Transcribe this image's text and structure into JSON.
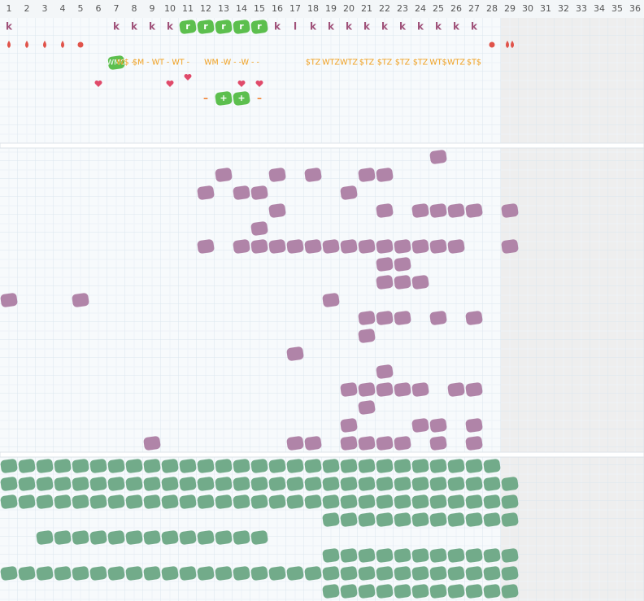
{
  "header": {
    "columns": [
      1,
      2,
      3,
      4,
      5,
      6,
      7,
      8,
      9,
      10,
      11,
      12,
      13,
      14,
      15,
      16,
      17,
      18,
      19,
      20,
      21,
      22,
      23,
      24,
      25,
      26,
      27,
      28,
      29,
      30,
      31,
      32,
      33,
      34,
      35,
      36
    ]
  },
  "top": {
    "row1": [
      "k",
      "k",
      "k",
      "k",
      "k",
      "r",
      "r",
      "r",
      "r",
      "r",
      "k",
      "l",
      "k",
      "k",
      "k",
      "k",
      "k",
      "k",
      "k",
      "k",
      "k",
      "k"
    ],
    "row3": {
      "blob": "WMO",
      "labels": [
        "W$ -",
        "$M - WT - WT -",
        "WM -W - -W - -",
        "$TZ",
        "WTZ",
        "WTZ",
        "$TZ",
        "$TZ",
        "$TZ",
        "$TZ",
        "WT$",
        "WTZ",
        "$T$"
      ]
    },
    "row5": [
      "–",
      "+",
      "+",
      "–"
    ]
  }
}
